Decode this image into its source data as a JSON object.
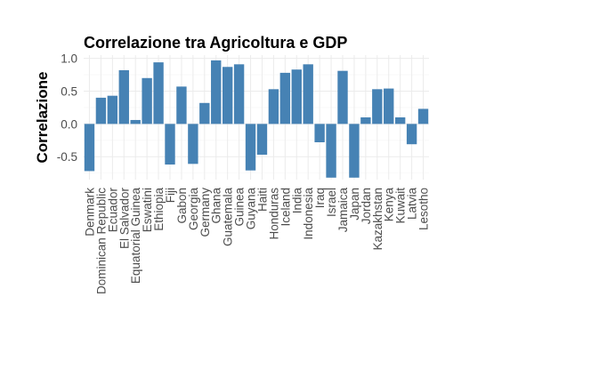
{
  "chart_data": {
    "type": "bar",
    "title": "Correlazione tra Agricoltura e GDP",
    "xlabel": "",
    "ylabel": "Correlazione",
    "ylim": [
      -0.85,
      1.05
    ],
    "yticks": [
      1.0,
      0.5,
      0.0,
      -0.5
    ],
    "ytick_labels": [
      "1.0",
      "0.5",
      "0.0",
      "-0.5"
    ],
    "grid": true,
    "bar_color": "#4682B4",
    "categories": [
      "Denmark",
      "Dominican Republic",
      "Ecuador",
      "El Salvador",
      "Equatorial Guinea",
      "Eswatini",
      "Ethiopia",
      "Fiji",
      "Gabon",
      "Georgia",
      "Germany",
      "Ghana",
      "Guatemala",
      "Guinea",
      "Guyana",
      "Haiti",
      "Honduras",
      "Iceland",
      "India",
      "Indonesia",
      "Iraq",
      "Israel",
      "Jamaica",
      "Japan",
      "Jordan",
      "Kazakhstan",
      "Kenya",
      "Kuwait",
      "Latvia",
      "Lesotho"
    ],
    "values": [
      -0.72,
      0.4,
      0.43,
      0.82,
      0.06,
      0.7,
      0.94,
      -0.62,
      0.57,
      -0.61,
      0.32,
      0.97,
      0.87,
      0.91,
      -0.71,
      -0.47,
      0.53,
      0.78,
      0.83,
      0.91,
      -0.28,
      -0.82,
      0.81,
      -0.82,
      0.1,
      0.53,
      0.54,
      0.1,
      -0.31,
      0.23
    ]
  }
}
